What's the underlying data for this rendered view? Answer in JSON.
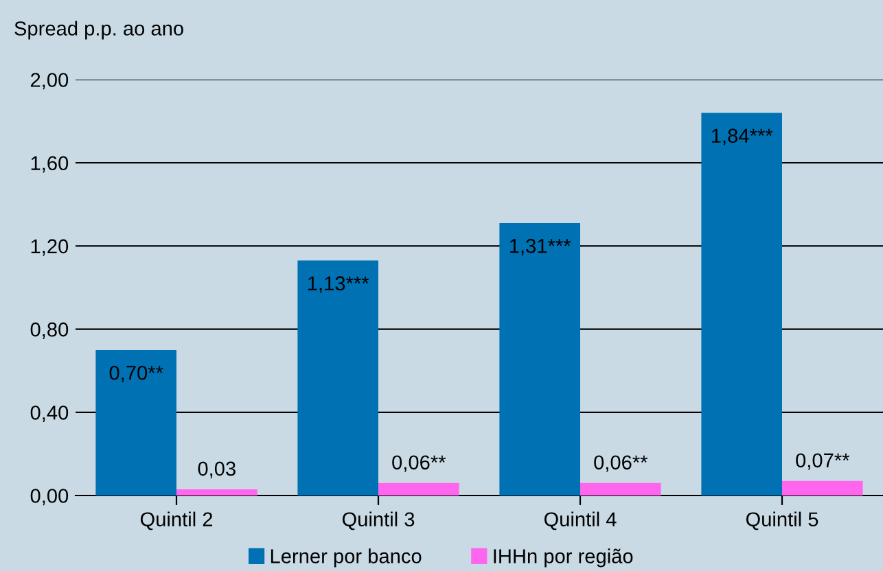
{
  "chart_data": {
    "type": "bar",
    "ylabel": "Spread p.p. ao ano",
    "categories": [
      "Quintil 2",
      "Quintil 3",
      "Quintil 4",
      "Quintil 5"
    ],
    "series": [
      {
        "name": "Lerner por banco",
        "color": "#0071b3",
        "values": [
          0.7,
          1.13,
          1.31,
          1.84
        ],
        "value_labels": [
          "0,70**",
          "1,13***",
          "1,31***",
          "1,84***"
        ]
      },
      {
        "name": "IHHn por região",
        "color": "#ff66ee",
        "values": [
          0.03,
          0.06,
          0.06,
          0.07
        ],
        "value_labels": [
          "0,03",
          "0,06**",
          "0,06**",
          "0,07**"
        ]
      }
    ],
    "ylim": [
      0,
      2.0
    ],
    "yticks": [
      {
        "value": 0,
        "label": "0,00"
      },
      {
        "value": 0.4,
        "label": "0,40"
      },
      {
        "value": 0.8,
        "label": "0,80"
      },
      {
        "value": 1.2,
        "label": "1,20"
      },
      {
        "value": 1.6,
        "label": "1,60"
      },
      {
        "value": 2.0,
        "label": "2,00"
      }
    ],
    "grid": "y",
    "legend": "bottom"
  }
}
